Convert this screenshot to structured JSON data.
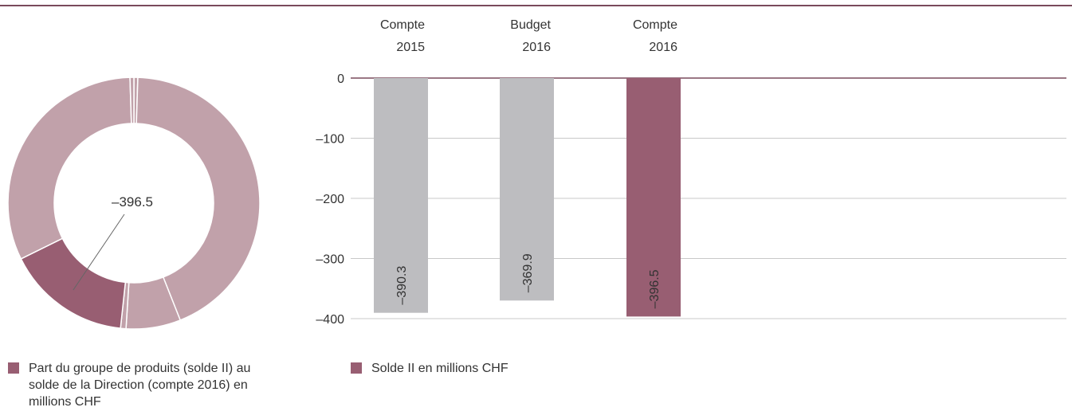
{
  "chart_data": [
    {
      "type": "pie",
      "style": "donut",
      "center_label": "–396.5",
      "legend": "Part du groupe de produits (solde II) au solde de la Direction (compte 2016) en millions CHF",
      "legend_color": "#985e72",
      "slices": [
        {
          "share": 0.005,
          "color": "#c1a1aa",
          "highlighted": false
        },
        {
          "share": 0.435,
          "color": "#c1a1aa",
          "highlighted": false
        },
        {
          "share": 0.07,
          "color": "#c1a1aa",
          "highlighted": false
        },
        {
          "share": 0.007,
          "color": "#c1a1aa",
          "highlighted": false
        },
        {
          "share": 0.16,
          "color": "#985e72",
          "highlighted": true
        },
        {
          "share": 0.318,
          "color": "#c1a1aa",
          "highlighted": false
        },
        {
          "share": 0.005,
          "color": "#c1a1aa",
          "highlighted": false
        }
      ]
    },
    {
      "type": "bar",
      "categories": [
        [
          "Compte",
          "2015"
        ],
        [
          "Budget",
          "2016"
        ],
        [
          "Compte",
          "2016"
        ]
      ],
      "values": [
        -390.3,
        -369.9,
        -396.5
      ],
      "value_labels": [
        "–390.3",
        "–369.9",
        "–396.5"
      ],
      "colors": [
        "#bdbdc0",
        "#bdbdc0",
        "#985e72"
      ],
      "ylim": [
        -400,
        0
      ],
      "yticks": [
        0,
        -100,
        -200,
        -300,
        -400
      ],
      "ytick_labels": [
        "0",
        "–100",
        "–200",
        "–300",
        "–400"
      ],
      "grid": true,
      "legend": "Solde II en millions CHF",
      "legend_color": "#985e72"
    }
  ]
}
